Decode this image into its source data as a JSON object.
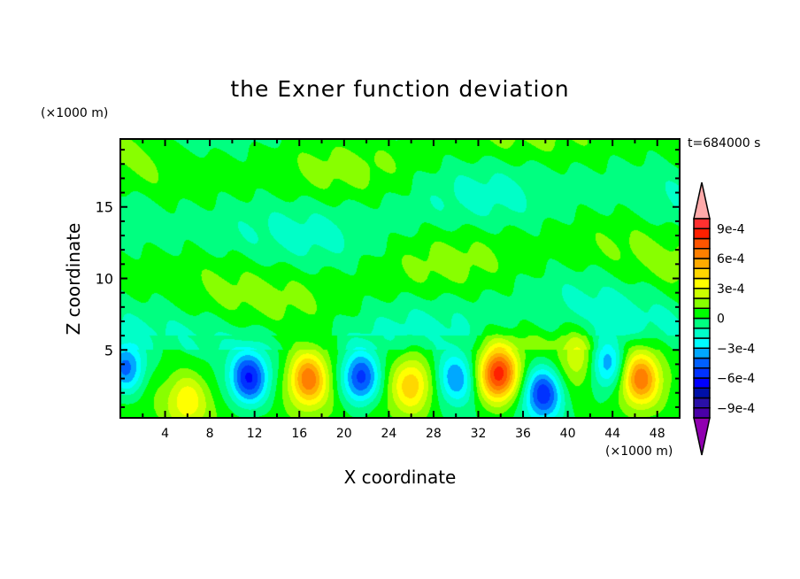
{
  "chart_data": {
    "type": "heatmap",
    "subtype": "filled-contour",
    "title": "the Exner function deviation",
    "xlabel": "X coordinate",
    "ylabel": "Z coordinate",
    "x_unit": "(×1000 m)",
    "y_unit": "(×1000 m)",
    "annotation": "t=684000 s",
    "xlim": [
      0,
      50
    ],
    "ylim": [
      0.25,
      19.75
    ],
    "x_ticks": [
      4,
      8,
      12,
      16,
      20,
      24,
      28,
      32,
      36,
      40,
      44,
      48
    ],
    "y_ticks": [
      5,
      10,
      15
    ],
    "contour_levels": [
      -0.001,
      -0.0009,
      -0.0008,
      -0.0007,
      -0.0006,
      -0.0005,
      -0.0004,
      -0.0003,
      -0.0002,
      -0.0001,
      0,
      0.0001,
      0.0002,
      0.0003,
      0.0004,
      0.0005,
      0.0006,
      0.0007,
      0.0008,
      0.0009,
      0.001
    ],
    "colorbar": {
      "tick_labels": [
        {
          "value": 0.0009,
          "label": "9e-4"
        },
        {
          "value": 0.0006,
          "label": "6e-4"
        },
        {
          "value": 0.0003,
          "label": "3e-4"
        },
        {
          "value": 0,
          "label": "0"
        },
        {
          "value": -0.0003,
          "label": "−3e-4"
        },
        {
          "value": -0.0006,
          "label": "−6e-4"
        },
        {
          "value": -0.0009,
          "label": "−9e-4"
        }
      ],
      "colors_low_to_high": [
        "#4a00a8",
        "#2a10a8",
        "#0010a8",
        "#0000ff",
        "#0032ff",
        "#0060ff",
        "#00a8ff",
        "#00ffff",
        "#00ffc8",
        "#00ff80",
        "#00ff00",
        "#88ff00",
        "#ccff00",
        "#ffff00",
        "#ffd700",
        "#ffaa00",
        "#ff7f00",
        "#ff5500",
        "#ff2000",
        "#ff3030"
      ],
      "under_color": "#9000b0",
      "over_color": "#ffaaaa",
      "extend": "both"
    },
    "features": [
      {
        "x": 0.5,
        "z": 3.7,
        "value": -0.0005
      },
      {
        "x": 6,
        "z": 1.5,
        "value": 0.0003
      },
      {
        "x": 11.5,
        "z": 3,
        "value": -0.00062
      },
      {
        "x": 16.8,
        "z": 3,
        "value": 0.00065
      },
      {
        "x": 21.5,
        "z": 3,
        "value": -0.0006
      },
      {
        "x": 26,
        "z": 2.6,
        "value": 0.0004
      },
      {
        "x": 30,
        "z": 3,
        "value": -0.00045
      },
      {
        "x": 33.8,
        "z": 3.3,
        "value": 0.0008
      },
      {
        "x": 37.8,
        "z": 2,
        "value": -0.00062
      },
      {
        "x": 41,
        "z": 4.5,
        "value": 0.00022
      },
      {
        "x": 43.5,
        "z": 4,
        "value": -0.00045
      },
      {
        "x": 46.5,
        "z": 3,
        "value": 0.00062
      }
    ]
  }
}
